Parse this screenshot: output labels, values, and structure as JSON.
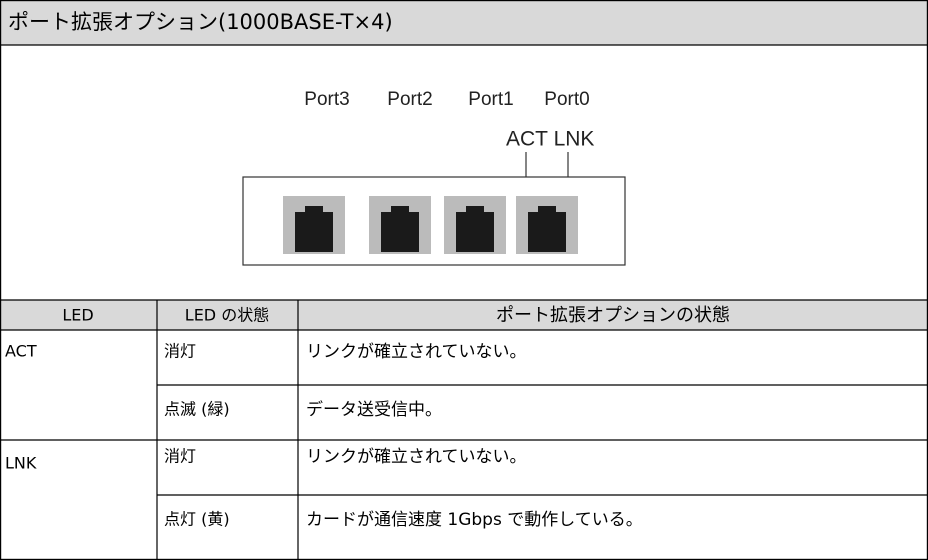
{
  "header": {
    "title": "ポート拡張オプション(1000BASE-T×4)"
  },
  "diagram": {
    "ports": [
      "Port3",
      "Port2",
      "Port1",
      "Port0"
    ],
    "leds": [
      "ACT",
      "LNK"
    ]
  },
  "table": {
    "columns": [
      "LED",
      "LED の状態",
      "ポート拡張オプションの状態"
    ],
    "rows": [
      {
        "led": "ACT",
        "states": [
          {
            "state": "消灯",
            "description": "リンクが確立されていない。"
          },
          {
            "state": "点滅 (緑)",
            "description": "データ送受信中。"
          }
        ]
      },
      {
        "led": "LNK",
        "states": [
          {
            "state": "消灯",
            "description": "リンクが確立されていない。"
          },
          {
            "state": "点灯 (黄)",
            "description": "カードが通信速度 1Gbps で動作している。"
          }
        ]
      }
    ]
  }
}
